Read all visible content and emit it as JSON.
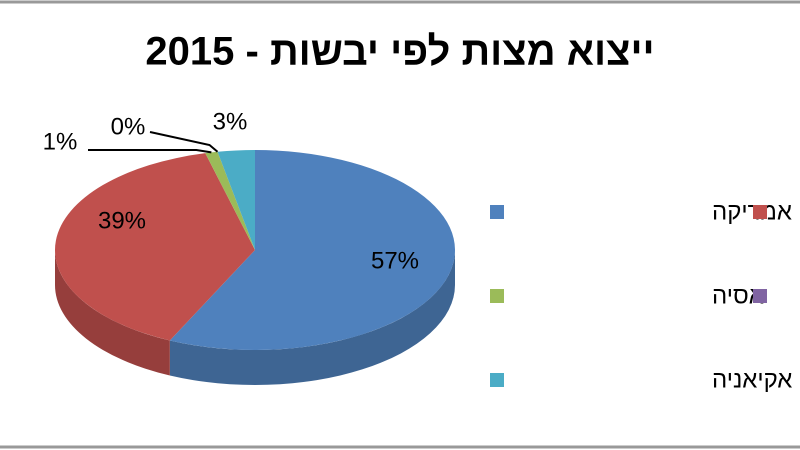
{
  "chart_data": {
    "type": "pie",
    "title": "ייצוא מצות לפי יבשות - 2015",
    "categories": [
      "אמריקה",
      null,
      "אסיה",
      null,
      "אקיאניה"
    ],
    "values": [
      57,
      39,
      1,
      0,
      3
    ],
    "value_labels": [
      "57%",
      "39%",
      "1%",
      "0%",
      "3%"
    ],
    "colors": [
      "#4f81bd",
      "#c0504d",
      "#9bbb59",
      "#8064a2",
      "#4bacc6"
    ]
  }
}
